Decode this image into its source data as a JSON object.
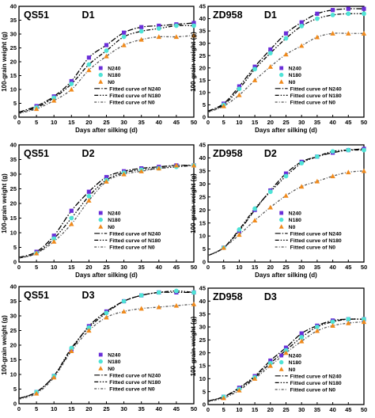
{
  "figure": {
    "x_axis_label": "Days after silking (d)",
    "y_axis_label": "100-grain weight (g)",
    "legend_labels": [
      "N240",
      "N180",
      "N0",
      "Fitted curve of N240",
      "Fitted curve of N180",
      "Fitted curve of N0"
    ],
    "colors": {
      "N240": "#6a2fd8",
      "N180": "#4fe3d6",
      "N0": "#f08a1c",
      "axis": "#000000"
    }
  },
  "chart_data": [
    {
      "type": "scatter",
      "cultivar": "QS51",
      "treatment": "D1",
      "xlabel": "Days after silking (d)",
      "ylabel": "100-grain weight (g)",
      "xlim": [
        0,
        50
      ],
      "ylim": [
        0,
        40
      ],
      "xticks": [
        0,
        5,
        10,
        15,
        20,
        25,
        30,
        35,
        40,
        45,
        50
      ],
      "yticks": [
        0,
        5,
        10,
        15,
        20,
        25,
        30,
        35,
        40
      ],
      "x": [
        5,
        10,
        15,
        20,
        25,
        30,
        35,
        40,
        45,
        50
      ],
      "legend_position": "bottom-right",
      "series": [
        {
          "name": "N240",
          "values": [
            4,
            7.5,
            13,
            21.5,
            26,
            30.5,
            32.5,
            33,
            33.5,
            34
          ]
        },
        {
          "name": "N180",
          "values": [
            3.5,
            7,
            12,
            19,
            24,
            29,
            31,
            32,
            33,
            33
          ]
        },
        {
          "name": "N0",
          "values": [
            3,
            6,
            10,
            17,
            22,
            26,
            28,
            29,
            29,
            29.5
          ]
        }
      ]
    },
    {
      "type": "scatter",
      "cultivar": "ZD958",
      "treatment": "D1",
      "xlabel": "Days after silking (d)",
      "ylabel": "100-grain weight (g)",
      "xlim": [
        0,
        50
      ],
      "ylim": [
        0,
        45
      ],
      "xticks": [
        0,
        5,
        10,
        15,
        20,
        25,
        30,
        35,
        40,
        45,
        50
      ],
      "yticks": [
        0,
        5,
        10,
        15,
        20,
        25,
        30,
        35,
        40,
        45
      ],
      "x": [
        5,
        10,
        15,
        20,
        25,
        30,
        35,
        40,
        45,
        50
      ],
      "legend_position": "bottom-right",
      "series": [
        {
          "name": "N240",
          "values": [
            5.5,
            12.5,
            20.5,
            27.5,
            34,
            38.5,
            42,
            43.5,
            44,
            44
          ]
        },
        {
          "name": "N180",
          "values": [
            5,
            11.5,
            19.5,
            26,
            32,
            37,
            40,
            41.5,
            42,
            42
          ]
        },
        {
          "name": "N0",
          "values": [
            4.5,
            9,
            15,
            20.5,
            25.5,
            29,
            32.5,
            34,
            34,
            34
          ]
        }
      ]
    },
    {
      "type": "scatter",
      "cultivar": "QS51",
      "treatment": "D2",
      "xlabel": "Days after silking (d)",
      "ylabel": "100-grain weight (g)",
      "xlim": [
        0,
        50
      ],
      "ylim": [
        0,
        40
      ],
      "xticks": [
        0,
        5,
        10,
        15,
        20,
        25,
        30,
        35,
        40,
        45,
        50
      ],
      "yticks": [
        0,
        5,
        10,
        15,
        20,
        25,
        30,
        35,
        40
      ],
      "x": [
        5,
        10,
        15,
        20,
        25,
        30,
        35,
        40,
        45,
        50
      ],
      "legend_position": "bottom-right",
      "series": [
        {
          "name": "N240",
          "values": [
            3.5,
            9,
            17.5,
            24,
            29,
            31,
            32,
            32.5,
            33,
            33
          ]
        },
        {
          "name": "N180",
          "values": [
            3,
            8,
            15,
            22.5,
            28,
            30.5,
            31.5,
            32,
            32.5,
            33
          ]
        },
        {
          "name": "N0",
          "values": [
            3,
            7,
            13,
            21,
            27.5,
            30,
            31,
            32,
            33,
            33
          ]
        }
      ]
    },
    {
      "type": "scatter",
      "cultivar": "ZD958",
      "treatment": "D2",
      "xlabel": "Days after silking (d)",
      "ylabel": "100-grain weight (g)",
      "xlim": [
        0,
        50
      ],
      "ylim": [
        0,
        45
      ],
      "xticks": [
        0,
        5,
        10,
        15,
        20,
        25,
        30,
        35,
        40,
        45,
        50
      ],
      "yticks": [
        0,
        5,
        10,
        15,
        20,
        25,
        30,
        35,
        40,
        45
      ],
      "x": [
        5,
        10,
        15,
        20,
        25,
        30,
        35,
        40,
        45,
        50
      ],
      "legend_position": "bottom-right",
      "series": [
        {
          "name": "N240",
          "values": [
            5.5,
            12,
            20,
            27.5,
            34,
            38.5,
            40.5,
            42,
            43,
            43.5
          ]
        },
        {
          "name": "N180",
          "values": [
            5.5,
            12.5,
            20.5,
            27,
            33,
            38,
            40.5,
            42.5,
            43,
            43
          ]
        },
        {
          "name": "N0",
          "values": [
            5.5,
            10.5,
            16,
            21,
            25.5,
            29,
            31,
            33,
            34.5,
            35
          ]
        }
      ]
    },
    {
      "type": "scatter",
      "cultivar": "QS51",
      "treatment": "D3",
      "xlabel": "Days after silking (d)",
      "ylabel": "100-grain weight (g)",
      "xlim": [
        0,
        50
      ],
      "ylim": [
        0,
        40
      ],
      "xticks": [
        0,
        5,
        10,
        15,
        20,
        25,
        30,
        35,
        40,
        45,
        50
      ],
      "yticks": [
        0,
        5,
        10,
        15,
        20,
        25,
        30,
        35,
        40
      ],
      "x": [
        5,
        10,
        15,
        20,
        25,
        30,
        35,
        40,
        45,
        50
      ],
      "legend_position": "bottom-right",
      "series": [
        {
          "name": "N240",
          "values": [
            4,
            9.5,
            18.5,
            26.5,
            31.5,
            35,
            37,
            38,
            38,
            38
          ]
        },
        {
          "name": "N180",
          "values": [
            4,
            9.5,
            19,
            26,
            31,
            35,
            37,
            38,
            38.5,
            38
          ]
        },
        {
          "name": "N0",
          "values": [
            3.5,
            9,
            18,
            25,
            29.5,
            31.5,
            32.5,
            33,
            33.5,
            34
          ]
        }
      ]
    },
    {
      "type": "scatter",
      "cultivar": "ZD958",
      "treatment": "D3",
      "xlabel": "Days after silking (d)",
      "ylabel": "100-grain weight (g)",
      "xlim": [
        0,
        50
      ],
      "ylim": [
        0,
        45
      ],
      "xticks": [
        0,
        5,
        10,
        15,
        20,
        25,
        30,
        35,
        40,
        45,
        50
      ],
      "yticks": [
        0,
        5,
        10,
        15,
        20,
        25,
        30,
        35,
        40,
        45
      ],
      "x": [
        5,
        10,
        15,
        20,
        25,
        30,
        35,
        40,
        45,
        50
      ],
      "legend_position": "bottom-right",
      "series": [
        {
          "name": "N240",
          "values": [
            3,
            6.5,
            11,
            17,
            22,
            27.5,
            30.5,
            32.5,
            33,
            33
          ]
        },
        {
          "name": "N180",
          "values": [
            3,
            6,
            10.5,
            16,
            21,
            26,
            30,
            32,
            33,
            33
          ]
        },
        {
          "name": "N0",
          "values": [
            2.5,
            5.5,
            10,
            15,
            20,
            24.5,
            28.5,
            30.5,
            31.5,
            32
          ]
        }
      ]
    }
  ]
}
